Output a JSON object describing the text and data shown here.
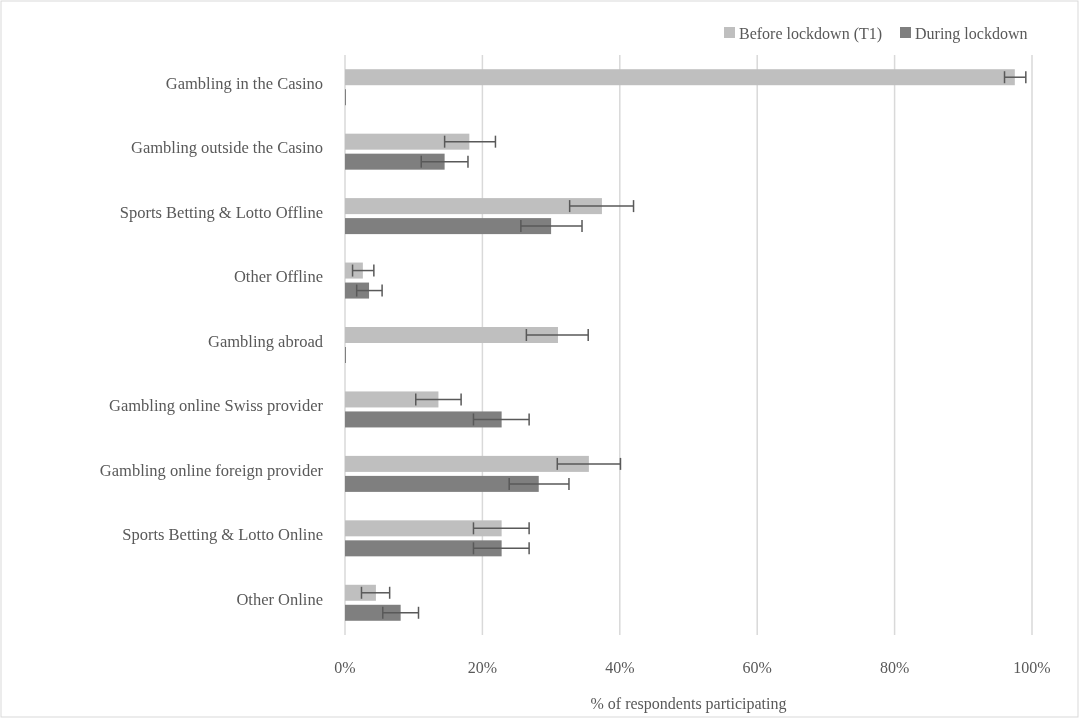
{
  "chart_data": {
    "type": "bar",
    "orientation": "horizontal",
    "xlabel": "% of respondents participating",
    "categories": [
      "Gambling in the Casino",
      "Gambling outside the Casino",
      "Sports Betting & Lotto Offline",
      "Other Offline",
      "Gambling abroad",
      "Gambling online Swiss provider",
      "Gambling online foreign provider",
      "Sports Betting & Lotto Online",
      "Other Online"
    ],
    "series": [
      {
        "name": "Before lockdown (T1)",
        "color": "#bfbfbf",
        "values": [
          97.5,
          18.1,
          37.4,
          2.6,
          31.0,
          13.6,
          35.5,
          22.8,
          4.5
        ],
        "errors": [
          [
            96.0,
            99.1
          ],
          [
            14.5,
            21.9
          ],
          [
            32.7,
            42.0
          ],
          [
            1.1,
            4.2
          ],
          [
            26.4,
            35.4
          ],
          [
            10.3,
            16.9
          ],
          [
            30.9,
            40.1
          ],
          [
            18.7,
            26.8
          ],
          [
            2.4,
            6.5
          ]
        ]
      },
      {
        "name": "During lockdown",
        "color": "#7f7f7f",
        "values": [
          0,
          14.5,
          30.0,
          3.5,
          0,
          22.8,
          28.2,
          22.8,
          8.1
        ],
        "errors": [
          null,
          [
            11.1,
            17.9
          ],
          [
            25.6,
            34.5
          ],
          [
            1.7,
            5.4
          ],
          null,
          [
            18.7,
            26.8
          ],
          [
            23.9,
            32.6
          ],
          [
            18.7,
            26.8
          ],
          [
            5.5,
            10.7
          ]
        ]
      }
    ],
    "xlim": [
      0,
      100
    ],
    "xticks": [
      {
        "value": 0,
        "label": "0%"
      },
      {
        "value": 20,
        "label": "20%"
      },
      {
        "value": 40,
        "label": "40%"
      },
      {
        "value": 60,
        "label": "60%"
      },
      {
        "value": 80,
        "label": "80%"
      },
      {
        "value": 100,
        "label": "100%"
      }
    ],
    "grid": "x",
    "legend": "top right"
  }
}
